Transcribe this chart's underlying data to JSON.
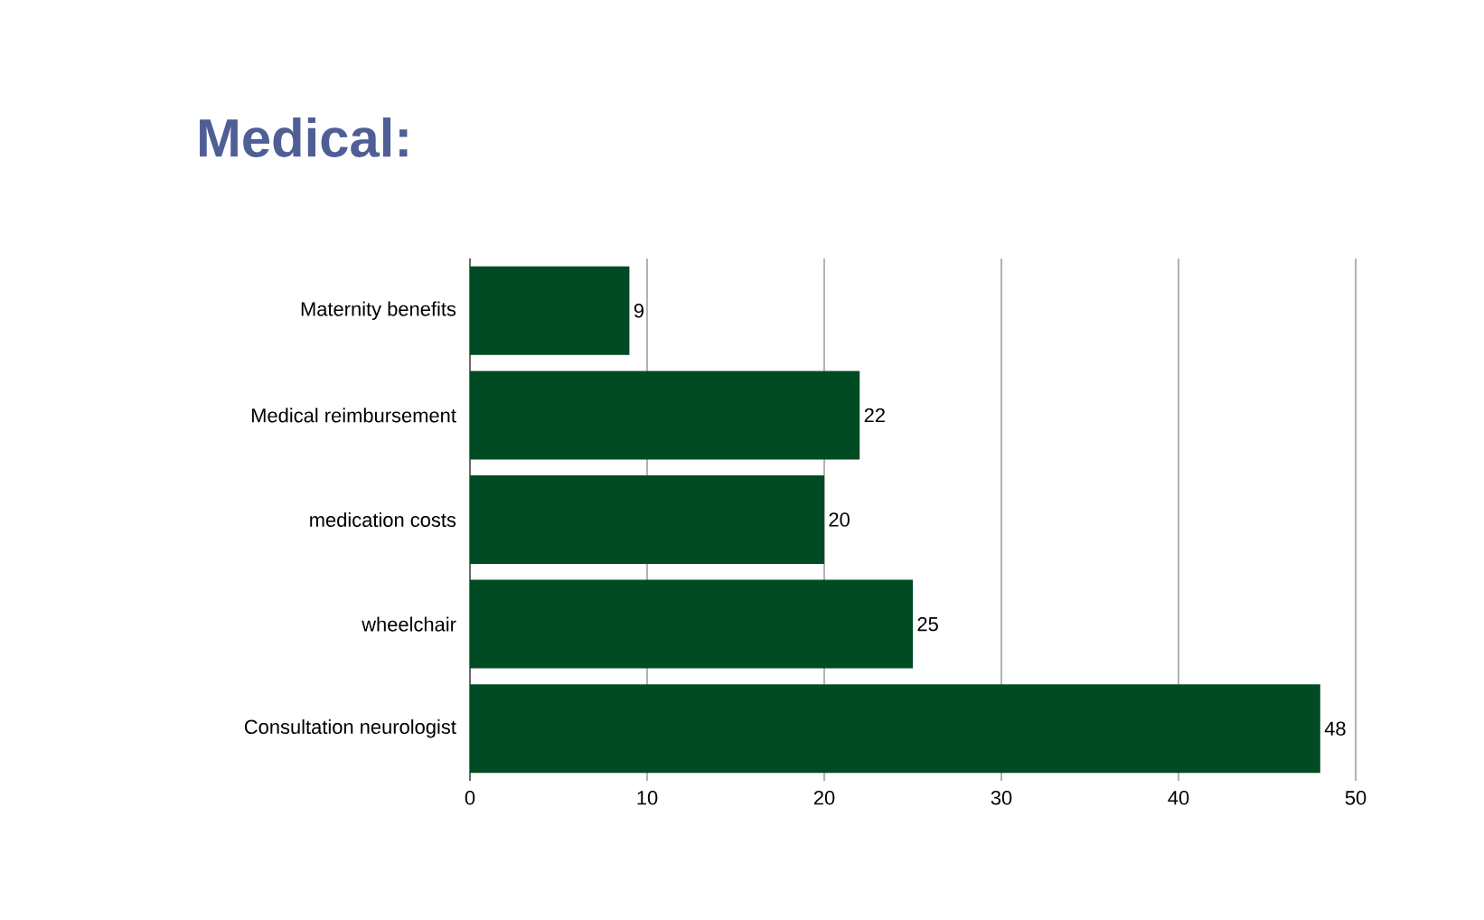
{
  "chart_data": {
    "type": "bar",
    "orientation": "horizontal",
    "title": "Medical:",
    "categories": [
      "Maternity benefits",
      "Medical reimbursement",
      "medication costs",
      "wheelchair",
      "Consultation neurologist"
    ],
    "values": [
      9,
      22,
      20,
      25,
      48
    ],
    "color": "#004b23",
    "xlim": [
      0,
      50
    ],
    "xticks": [
      0,
      10,
      20,
      30,
      40,
      50
    ],
    "grid": "x",
    "data_labels": true
  }
}
